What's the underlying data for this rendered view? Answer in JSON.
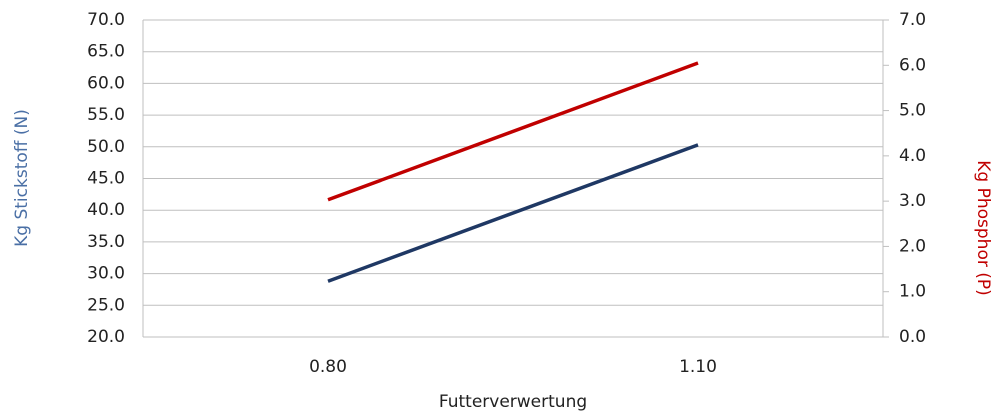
{
  "chart_data": {
    "type": "line",
    "categories": [
      "0.80",
      "1.10"
    ],
    "series": [
      {
        "name": "Kg Stickstoff (N)",
        "color": "#1f3864",
        "values": [
          28.8,
          50.3
        ]
      },
      {
        "name": "Kg Phosphor (P)",
        "color": "#c00000",
        "axis": "y2",
        "values": [
          3.03,
          6.05
        ]
      }
    ],
    "ylim": [
      20,
      70
    ],
    "yticks": [
      {
        "value": 20,
        "label": "20.0"
      },
      {
        "value": 25,
        "label": "25.0"
      },
      {
        "value": 30,
        "label": "30.0"
      },
      {
        "value": 35,
        "label": "35.0"
      },
      {
        "value": 40,
        "label": "40.0"
      },
      {
        "value": 45,
        "label": "45.0"
      },
      {
        "value": 50,
        "label": "50.0"
      },
      {
        "value": 55,
        "label": "55.0"
      },
      {
        "value": 60,
        "label": "60.0"
      },
      {
        "value": 65,
        "label": "65.0"
      },
      {
        "value": 70,
        "label": "70.0"
      }
    ],
    "y2lim": [
      0,
      7
    ],
    "y2ticks": [
      {
        "value": 0,
        "label": "0.0"
      },
      {
        "value": 1,
        "label": "1.0"
      },
      {
        "value": 2,
        "label": "2.0"
      },
      {
        "value": 3,
        "label": "3.0"
      },
      {
        "value": 4,
        "label": "4.0"
      },
      {
        "value": 5,
        "label": "5.0"
      },
      {
        "value": 6,
        "label": "6.0"
      },
      {
        "value": 7,
        "label": "7.0"
      }
    ],
    "xlabel": "Futterverwertung",
    "ylabel": "Kg Stickstoff (N)",
    "y2label": "Kg Phosphor (P)",
    "ylabel_color": "#4a6fa5",
    "y2label_color": "#c00000",
    "grid": true
  }
}
